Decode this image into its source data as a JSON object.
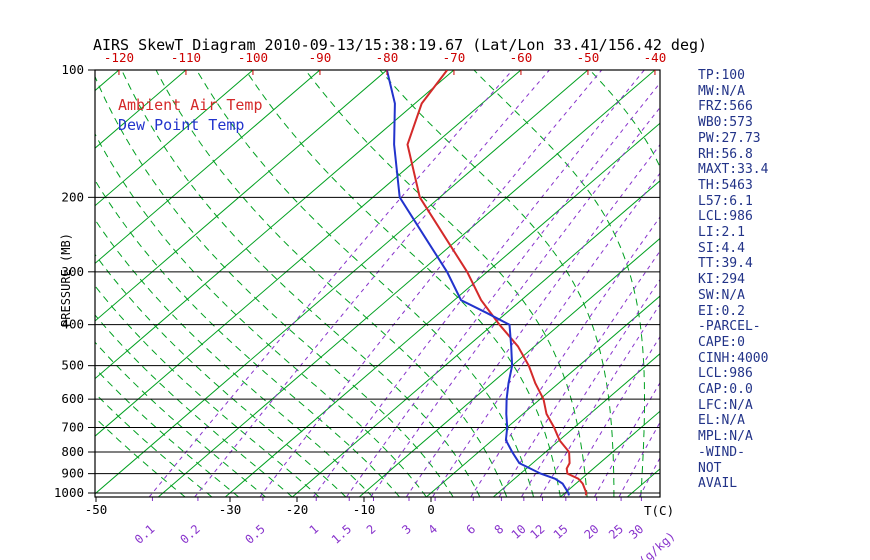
{
  "title": "AIRS SkewT Diagram 2010-09-13/15:38:19.67 (Lat/Lon 33.41/156.42 deg)",
  "legend": {
    "temp": {
      "label": "Ambient Air Temp",
      "color": "#d42a2a"
    },
    "dewpoint": {
      "label": "Dew Point Temp",
      "color": "#2233cc"
    }
  },
  "axes": {
    "y_label": "PRESSURE (MB)",
    "x_label_right": "T(C)",
    "mixing_units_label": "(g/kg)"
  },
  "stats_panel": {
    "color": "#223388",
    "lines": [
      "TP:100",
      "MW:N/A",
      "FRZ:566",
      "WB0:573",
      "PW:27.73",
      "RH:56.8",
      "MAXT:33.4",
      "TH:5463",
      "L57:6.1",
      "LCL:986",
      "LI:2.1",
      "SI:4.4",
      "TT:39.4",
      "KI:294",
      "SW:N/A",
      "EI:0.2",
      "-PARCEL-",
      "CAPE:0",
      "CINH:4000",
      "LCL:986",
      "CAP:0.0",
      "LFC:N/A",
      "EL:N/A",
      "MPL:N/A",
      "-WIND-",
      "NOT",
      "AVAIL"
    ],
    "wind_status": "NOT AVAIL"
  },
  "colors": {
    "isotherm": "#00a020",
    "adiabat": "#00a020",
    "mixing": "#8833cc",
    "isobar": "#000000",
    "frame": "#000000",
    "top_labels": "#cc0000",
    "bottom_temp_labels": "#000000"
  },
  "chart_data": {
    "type": "line",
    "subtype": "skewt-log-p",
    "title": "AIRS SkewT Diagram 2010-09-13/15:38:19.67 (Lat/Lon 33.41/156.42 deg)",
    "xlabel": "T(C)",
    "ylabel": "PRESSURE (MB)",
    "ylim_mb": [
      100,
      1022
    ],
    "x_temp_at_1000mb_range_c": [
      -50,
      34
    ],
    "grid": "skewed isotherms / moist adiabats / mixing ratio lines / log-p isobars",
    "legend_position": "top-left-inside",
    "pressure_ticks_mb": [
      100,
      200,
      300,
      400,
      500,
      600,
      700,
      800,
      900,
      1000
    ],
    "top_temp_ticks_c": [
      -120,
      -110,
      -100,
      -90,
      -80,
      -70,
      -60,
      -50,
      -40
    ],
    "bottom_temp_ticks_c": [
      -50,
      -30,
      -20,
      -10,
      0
    ],
    "isotherms_c": [
      -130,
      -120,
      -110,
      -100,
      -90,
      -80,
      -70,
      -60,
      -50,
      -40,
      -30,
      -20,
      -10,
      0,
      10,
      20,
      30,
      40
    ],
    "moist_adiabats_c": [
      -36,
      -32,
      -28,
      -24,
      -20,
      -16,
      -12,
      -8,
      -4,
      0,
      4,
      8,
      12,
      16,
      20,
      24,
      28,
      32,
      36,
      40,
      44,
      48,
      52
    ],
    "mixing_ratio_g_kg": [
      0.1,
      0.2,
      0.5,
      1,
      1.5,
      2,
      3,
      4,
      6,
      8,
      10,
      12,
      15,
      20,
      25,
      30
    ],
    "series": [
      {
        "name": "Ambient Air Temp",
        "color": "#d42a2a",
        "points_p_t": [
          [
            1013,
            23.5
          ],
          [
            1000,
            23.2
          ],
          [
            950,
            21.0
          ],
          [
            925,
            19.5
          ],
          [
            900,
            17.0
          ],
          [
            875,
            16.0
          ],
          [
            850,
            15.5
          ],
          [
            800,
            13.5
          ],
          [
            750,
            10.0
          ],
          [
            700,
            7.0
          ],
          [
            650,
            3.5
          ],
          [
            600,
            0.5
          ],
          [
            550,
            -3.5
          ],
          [
            500,
            -7.5
          ],
          [
            450,
            -12.5
          ],
          [
            400,
            -19.0
          ],
          [
            350,
            -26.0
          ],
          [
            300,
            -33.0
          ],
          [
            250,
            -42.0
          ],
          [
            200,
            -53.0
          ],
          [
            150,
            -64.0
          ],
          [
            120,
            -69.0
          ],
          [
            100,
            -71.0
          ]
        ]
      },
      {
        "name": "Dew Point Temp",
        "color": "#2233cc",
        "points_p_t": [
          [
            1013,
            21.0
          ],
          [
            1000,
            20.5
          ],
          [
            950,
            18.0
          ],
          [
            925,
            16.0
          ],
          [
            900,
            13.0
          ],
          [
            850,
            8.0
          ],
          [
            800,
            5.0
          ],
          [
            750,
            2.0
          ],
          [
            700,
            0.0
          ],
          [
            650,
            -2.5
          ],
          [
            600,
            -5.0
          ],
          [
            550,
            -7.5
          ],
          [
            500,
            -10.0
          ],
          [
            450,
            -13.5
          ],
          [
            400,
            -17.5
          ],
          [
            375,
            -23.0
          ],
          [
            350,
            -29.0
          ],
          [
            300,
            -36.0
          ],
          [
            250,
            -45.0
          ],
          [
            200,
            -56.0
          ],
          [
            150,
            -66.0
          ],
          [
            120,
            -73.0
          ],
          [
            100,
            -80.0
          ]
        ]
      }
    ]
  }
}
